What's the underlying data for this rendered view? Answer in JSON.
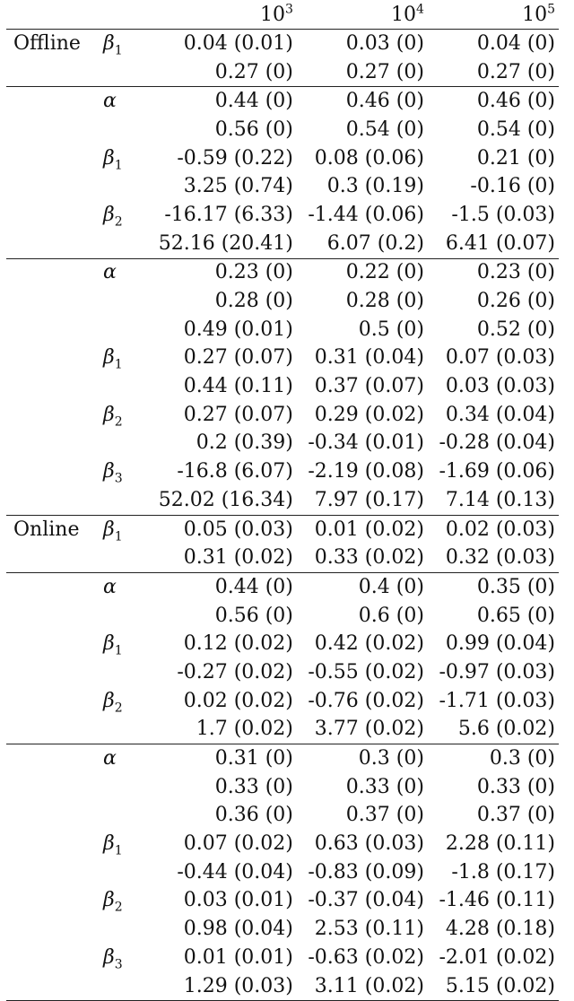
{
  "header": {
    "columns": [
      {
        "base": "10",
        "exp": "3"
      },
      {
        "base": "10",
        "exp": "4"
      },
      {
        "base": "10",
        "exp": "5"
      }
    ]
  },
  "sections": [
    {
      "group": "Offline",
      "rows": [
        {
          "param": "β",
          "sub": "1",
          "values": [
            "0.04 (0.01)",
            "0.03 (0)",
            "0.04 (0)"
          ]
        },
        {
          "param": "",
          "sub": "",
          "values": [
            "0.27 (0)",
            "0.27 (0)",
            "0.27 (0)"
          ]
        }
      ]
    },
    {
      "group": "",
      "rows": [
        {
          "param": "α",
          "sub": "",
          "values": [
            "0.44 (0)",
            "0.46 (0)",
            "0.46 (0)"
          ]
        },
        {
          "param": "",
          "sub": "",
          "values": [
            "0.56 (0)",
            "0.54 (0)",
            "0.54 (0)"
          ]
        },
        {
          "param": "β",
          "sub": "1",
          "values": [
            "-0.59 (0.22)",
            "0.08 (0.06)",
            "0.21 (0)"
          ]
        },
        {
          "param": "",
          "sub": "",
          "values": [
            "3.25 (0.74)",
            "0.3 (0.19)",
            "-0.16 (0)"
          ]
        },
        {
          "param": "β",
          "sub": "2",
          "values": [
            "-16.17 (6.33)",
            "-1.44 (0.06)",
            "-1.5 (0.03)"
          ]
        },
        {
          "param": "",
          "sub": "",
          "values": [
            "52.16 (20.41)",
            "6.07 (0.2)",
            "6.41 (0.07)"
          ]
        }
      ]
    },
    {
      "group": "",
      "rows": [
        {
          "param": "α",
          "sub": "",
          "values": [
            "0.23 (0)",
            "0.22 (0)",
            "0.23 (0)"
          ]
        },
        {
          "param": "",
          "sub": "",
          "values": [
            "0.28 (0)",
            "0.28 (0)",
            "0.26 (0)"
          ]
        },
        {
          "param": "",
          "sub": "",
          "values": [
            "0.49 (0.01)",
            "0.5 (0)",
            "0.52 (0)"
          ]
        },
        {
          "param": "β",
          "sub": "1",
          "values": [
            "0.27 (0.07)",
            "0.31 (0.04)",
            "0.07 (0.03)"
          ]
        },
        {
          "param": "",
          "sub": "",
          "values": [
            "0.44 (0.11)",
            "0.37 (0.07)",
            "0.03 (0.03)"
          ]
        },
        {
          "param": "β",
          "sub": "2",
          "values": [
            "0.27 (0.07)",
            "0.29 (0.02)",
            "0.34 (0.04)"
          ]
        },
        {
          "param": "",
          "sub": "",
          "values": [
            "0.2 (0.39)",
            "-0.34 (0.01)",
            "-0.28 (0.04)"
          ]
        },
        {
          "param": "β",
          "sub": "3",
          "values": [
            "-16.8 (6.07)",
            "-2.19 (0.08)",
            "-1.69 (0.06)"
          ]
        },
        {
          "param": "",
          "sub": "",
          "values": [
            "52.02 (16.34)",
            "7.97 (0.17)",
            "7.14 (0.13)"
          ]
        }
      ]
    },
    {
      "group": "Online",
      "rows": [
        {
          "param": "β",
          "sub": "1",
          "values": [
            "0.05 (0.03)",
            "0.01 (0.02)",
            "0.02 (0.03)"
          ]
        },
        {
          "param": "",
          "sub": "",
          "values": [
            "0.31 (0.02)",
            "0.33 (0.02)",
            "0.32 (0.03)"
          ]
        }
      ]
    },
    {
      "group": "",
      "rows": [
        {
          "param": "α",
          "sub": "",
          "values": [
            "0.44 (0)",
            "0.4 (0)",
            "0.35 (0)"
          ]
        },
        {
          "param": "",
          "sub": "",
          "values": [
            "0.56 (0)",
            "0.6 (0)",
            "0.65 (0)"
          ]
        },
        {
          "param": "β",
          "sub": "1",
          "values": [
            "0.12 (0.02)",
            "0.42 (0.02)",
            "0.99 (0.04)"
          ]
        },
        {
          "param": "",
          "sub": "",
          "values": [
            "-0.27 (0.02)",
            "-0.55 (0.02)",
            "-0.97 (0.03)"
          ]
        },
        {
          "param": "β",
          "sub": "2",
          "values": [
            "0.02 (0.02)",
            "-0.76 (0.02)",
            "-1.71 (0.03)"
          ]
        },
        {
          "param": "",
          "sub": "",
          "values": [
            "1.7 (0.02)",
            "3.77 (0.02)",
            "5.6 (0.02)"
          ]
        }
      ]
    },
    {
      "group": "",
      "rows": [
        {
          "param": "α",
          "sub": "",
          "values": [
            "0.31 (0)",
            "0.3 (0)",
            "0.3 (0)"
          ]
        },
        {
          "param": "",
          "sub": "",
          "values": [
            "0.33 (0)",
            "0.33 (0)",
            "0.33 (0)"
          ]
        },
        {
          "param": "",
          "sub": "",
          "values": [
            "0.36 (0)",
            "0.37 (0)",
            "0.37 (0)"
          ]
        },
        {
          "param": "β",
          "sub": "1",
          "values": [
            "0.07 (0.02)",
            "0.63 (0.03)",
            "2.28 (0.11)"
          ]
        },
        {
          "param": "",
          "sub": "",
          "values": [
            "-0.44 (0.04)",
            "-0.83 (0.09)",
            "-1.8 (0.17)"
          ]
        },
        {
          "param": "β",
          "sub": "2",
          "values": [
            "0.03 (0.01)",
            "-0.37 (0.04)",
            "-1.46 (0.11)"
          ]
        },
        {
          "param": "",
          "sub": "",
          "values": [
            "0.98 (0.04)",
            "2.53 (0.11)",
            "4.28 (0.18)"
          ]
        },
        {
          "param": "β",
          "sub": "3",
          "values": [
            "0.01 (0.01)",
            "-0.63 (0.02)",
            "-2.01 (0.02)"
          ]
        },
        {
          "param": "",
          "sub": "",
          "values": [
            "1.29 (0.03)",
            "3.11 (0.02)",
            "5.15 (0.02)"
          ]
        }
      ]
    }
  ]
}
